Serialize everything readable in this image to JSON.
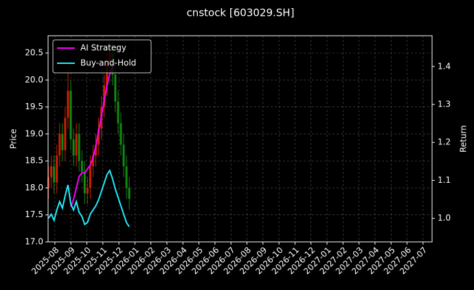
{
  "chart_data": {
    "type": "candlestick",
    "title": "cnstock [603029.SH]",
    "y_label": "Price",
    "y2_label": "Return",
    "x": [
      2025.55,
      2025.5645,
      2025.579,
      2025.5935,
      2025.608,
      2025.6225,
      2025.637,
      2025.6515,
      2025.666,
      2025.6805,
      2025.695,
      2025.7095,
      2025.724,
      2025.7385,
      2025.753,
      2025.7675,
      2025.782,
      2025.7965,
      2025.811,
      2025.8255,
      2025.84,
      2025.8545,
      2025.869,
      2025.8835,
      2025.898,
      2025.9125,
      2025.927,
      2025.9415,
      2025.956,
      2025.9705
    ],
    "open": [
      18.0,
      18.2,
      18.4,
      18.1,
      18.6,
      19.0,
      18.7,
      19.3,
      19.8,
      18.9,
      18.6,
      19.0,
      18.5,
      18.3,
      17.9,
      18.0,
      18.4,
      18.6,
      18.8,
      19.1,
      19.5,
      19.9,
      20.3,
      20.5,
      20.1,
      19.6,
      19.2,
      18.8,
      18.4,
      18.0
    ],
    "high": [
      18.4,
      18.6,
      18.6,
      18.8,
      19.2,
      19.2,
      19.5,
      20.2,
      20.0,
      19.1,
      19.2,
      19.2,
      18.7,
      18.5,
      18.2,
      18.6,
      18.8,
      19.0,
      19.3,
      19.7,
      20.1,
      20.5,
      20.7,
      20.7,
      20.3,
      19.8,
      19.4,
      19.0,
      18.6,
      18.2
    ],
    "low": [
      17.8,
      18.0,
      17.9,
      17.9,
      18.4,
      18.5,
      18.5,
      19.1,
      18.7,
      18.4,
      18.4,
      18.3,
      18.1,
      17.7,
      17.7,
      17.8,
      18.2,
      18.4,
      18.6,
      18.9,
      19.3,
      19.7,
      20.1,
      19.9,
      19.4,
      19.0,
      18.6,
      18.2,
      17.8,
      17.6
    ],
    "close": [
      18.2,
      18.4,
      18.1,
      18.6,
      19.0,
      18.7,
      19.3,
      19.8,
      18.9,
      18.6,
      19.0,
      18.5,
      18.3,
      17.9,
      18.0,
      18.4,
      18.6,
      18.8,
      19.1,
      19.5,
      19.9,
      20.3,
      20.5,
      20.1,
      19.6,
      19.2,
      18.8,
      18.4,
      18.0,
      17.8
    ],
    "up_color": "#cc2200",
    "down_color": "#138a13",
    "series": [
      {
        "name": "AI Strategy",
        "color": "#ff00ff",
        "axis": "y2",
        "values": [
          null,
          null,
          null,
          null,
          null,
          null,
          null,
          null,
          1.03,
          1.05,
          1.08,
          1.11,
          1.12,
          1.12,
          1.13,
          1.14,
          1.16,
          1.19,
          1.23,
          1.27,
          1.31,
          1.35,
          1.38,
          1.4,
          1.41,
          null,
          null,
          null,
          null,
          null
        ]
      },
      {
        "name": "Buy-and-Hold",
        "color": "#22eeff",
        "axis": "y2",
        "values": [
          1.0,
          1.011,
          0.995,
          1.022,
          1.044,
          1.027,
          1.06,
          1.088,
          1.038,
          1.022,
          1.044,
          1.016,
          1.005,
          0.984,
          0.989,
          1.011,
          1.022,
          1.033,
          1.049,
          1.071,
          1.093,
          1.115,
          1.126,
          1.104,
          1.077,
          1.055,
          1.033,
          1.011,
          0.989,
          0.978
        ]
      }
    ],
    "xlim": [
      2025.548,
      2027.547
    ],
    "xticks": [
      {
        "value": 2025.5833,
        "label": "2025-08"
      },
      {
        "value": 2025.6667,
        "label": "2025-09"
      },
      {
        "value": 2025.75,
        "label": "2025-10"
      },
      {
        "value": 2025.8333,
        "label": "2025-11"
      },
      {
        "value": 2025.9167,
        "label": "2025-12"
      },
      {
        "value": 2026,
        "label": "2026-01"
      },
      {
        "value": 2026.0833,
        "label": "2026-02"
      },
      {
        "value": 2026.1667,
        "label": "2026-03"
      },
      {
        "value": 2026.25,
        "label": "2026-04"
      },
      {
        "value": 2026.3333,
        "label": "2026-05"
      },
      {
        "value": 2026.4167,
        "label": "2026-06"
      },
      {
        "value": 2026.5,
        "label": "2026-07"
      },
      {
        "value": 2026.5833,
        "label": "2026-08"
      },
      {
        "value": 2026.6667,
        "label": "2026-09"
      },
      {
        "value": 2026.75,
        "label": "2026-10"
      },
      {
        "value": 2026.8333,
        "label": "2026-11"
      },
      {
        "value": 2026.9167,
        "label": "2026-12"
      },
      {
        "value": 2027,
        "label": "2027-01"
      },
      {
        "value": 2027.0833,
        "label": "2027-02"
      },
      {
        "value": 2027.1667,
        "label": "2027-03"
      },
      {
        "value": 2027.25,
        "label": "2027-04"
      },
      {
        "value": 2027.3333,
        "label": "2027-05"
      },
      {
        "value": 2027.4167,
        "label": "2027-06"
      },
      {
        "value": 2027.5,
        "label": "2027-07"
      }
    ],
    "ylim": [
      17.0,
      20.82
    ],
    "yticks": [
      {
        "value": 17,
        "label": "17.0"
      },
      17.5,
      {
        "value": 18,
        "label": "18.0"
      },
      18.5,
      {
        "value": 19,
        "label": "19.0"
      },
      19.5,
      {
        "value": 20,
        "label": "20.0"
      },
      20.5
    ],
    "y2lim": [
      0.938,
      1.481
    ],
    "y2ticks": [
      {
        "value": 1,
        "label": "1.0"
      },
      1.1,
      1.2,
      1.3,
      1.4
    ],
    "grid": true,
    "legend": "upper-left"
  }
}
